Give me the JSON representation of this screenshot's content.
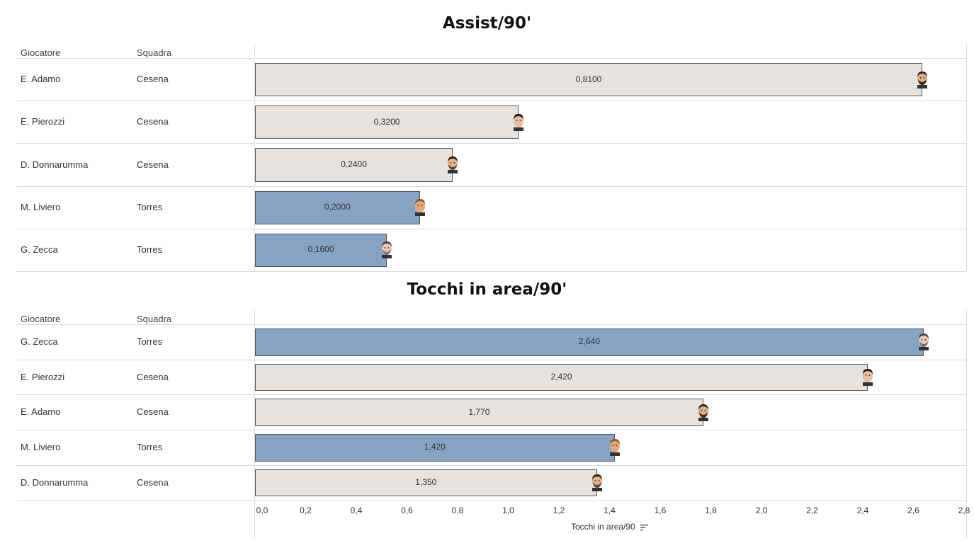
{
  "colors": {
    "Cesena": "#e6e2df",
    "Torres": "#86a3c3",
    "grid": "#dcdcdc"
  },
  "chart_data": [
    {
      "type": "bar",
      "orientation": "horizontal",
      "title": "Assist/90'",
      "columns": [
        "Giocatore",
        "Squadra"
      ],
      "rows": [
        {
          "player": "E. Adamo",
          "team": "Cesena",
          "value": 0.81,
          "label": "0,8100",
          "avatar": "player-face-icon"
        },
        {
          "player": "E. Pierozzi",
          "team": "Cesena",
          "value": 0.32,
          "label": "0,3200",
          "avatar": "player-face-icon"
        },
        {
          "player": "D. Donnarumma",
          "team": "Cesena",
          "value": 0.24,
          "label": "0,2400",
          "avatar": "player-face-icon"
        },
        {
          "player": "M. Liviero",
          "team": "Torres",
          "value": 0.2,
          "label": "0,2000",
          "avatar": "player-face-icon"
        },
        {
          "player": "G. Zecca",
          "team": "Torres",
          "value": 0.16,
          "label": "0,1600",
          "avatar": "player-face-icon"
        }
      ],
      "xlim": [
        0,
        0.85
      ]
    },
    {
      "type": "bar",
      "orientation": "horizontal",
      "title": "Tocchi in area/90'",
      "columns": [
        "Giocatore",
        "Squadra"
      ],
      "rows": [
        {
          "player": "G. Zecca",
          "team": "Torres",
          "value": 2.64,
          "label": "2,640",
          "avatar": "player-face-icon"
        },
        {
          "player": "E. Pierozzi",
          "team": "Cesena",
          "value": 2.42,
          "label": "2,420",
          "avatar": "player-face-icon"
        },
        {
          "player": "E. Adamo",
          "team": "Cesena",
          "value": 1.77,
          "label": "1,770",
          "avatar": "player-face-icon"
        },
        {
          "player": "M. Liviero",
          "team": "Torres",
          "value": 1.42,
          "label": "1,420",
          "avatar": "player-face-icon"
        },
        {
          "player": "D. Donnarumma",
          "team": "Cesena",
          "value": 1.35,
          "label": "1,350",
          "avatar": "player-face-icon"
        }
      ],
      "xlim": [
        0,
        2.8
      ],
      "ticks": [
        0.0,
        0.2,
        0.4,
        0.6,
        0.8,
        1.0,
        1.2,
        1.4,
        1.6,
        1.8,
        2.0,
        2.2,
        2.4,
        2.6,
        2.8
      ],
      "tick_labels": [
        "0,0",
        "0,2",
        "0,4",
        "0,6",
        "0,8",
        "1,0",
        "1,2",
        "1,4",
        "1,6",
        "1,8",
        "2,0",
        "2,2",
        "2,4",
        "2,6",
        "2,8"
      ],
      "xlabel": "Tocchi in area/90",
      "sort_icon": "sort-descending-icon"
    }
  ]
}
